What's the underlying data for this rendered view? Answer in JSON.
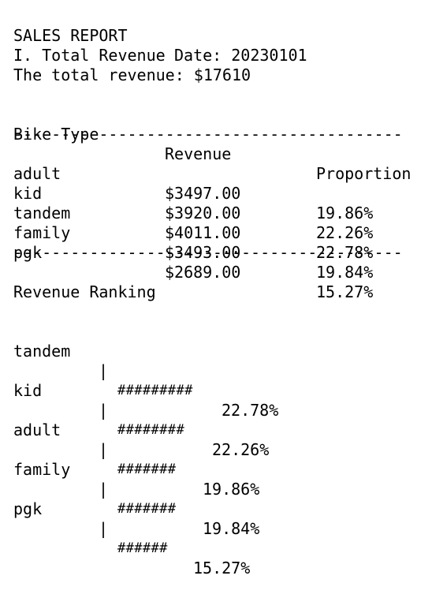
{
  "header": {
    "title": "SALES REPORT",
    "date_label": "Date: 20230101"
  },
  "total": {
    "heading": "I. Total Revenue",
    "text": "The total revenue: $17610"
  },
  "table": {
    "columns": [
      "Bike Type",
      "Revenue",
      "Proportion"
    ],
    "rule": "-----------------------------------------",
    "rows": [
      {
        "type": "adult",
        "revenue": "$3497.00",
        "proportion": "19.86%"
      },
      {
        "type": "kid",
        "revenue": "$3920.00",
        "proportion": "22.26%"
      },
      {
        "type": "tandem",
        "revenue": "$4011.00",
        "proportion": "22.78%"
      },
      {
        "type": "family",
        "revenue": "$3493.00",
        "proportion": "19.84%"
      },
      {
        "type": "pgk",
        "revenue": "$2689.00",
        "proportion": "15.27%"
      }
    ]
  },
  "ranking": {
    "heading": "Revenue Ranking",
    "separator": "|",
    "rows": [
      {
        "name": "tandem",
        "bar": "#########",
        "value": "22.78%"
      },
      {
        "name": "kid",
        "bar": "########",
        "value": "22.26%"
      },
      {
        "name": "adult",
        "bar": "#######",
        "value": "19.86%"
      },
      {
        "name": "family",
        "bar": "#######",
        "value": "19.84%"
      },
      {
        "name": "pgk",
        "bar": "######",
        "value": "15.27%"
      }
    ]
  }
}
